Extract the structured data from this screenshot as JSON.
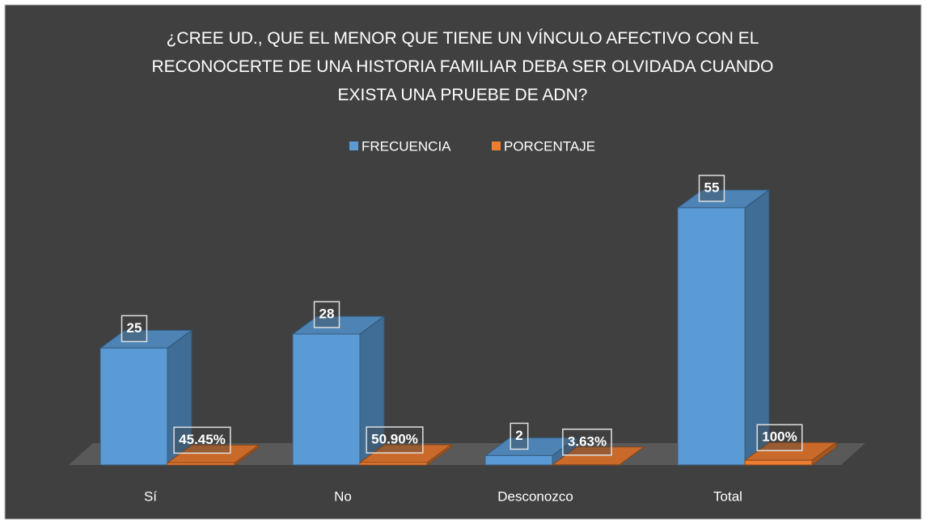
{
  "chart_data": {
    "type": "bar3d",
    "title": "¿CREE UD., QUE EL MENOR QUE TIENE UN VÍNCULO AFECTIVO CON EL RECONOCERTE DE UNA HISTORIA FAMILIAR DEBA SER OLVIDADA CUANDO EXISTA UNA PRUEBE DE ADN?",
    "categories": [
      "Sí",
      "No",
      "Desconozco",
      "Total"
    ],
    "series": [
      {
        "name": "FRECUENCIA",
        "color": "#5b9bd5",
        "values": [
          25,
          28,
          2,
          55
        ]
      },
      {
        "name": "PORCENTAJE",
        "color": "#ed7d31",
        "values": [
          0.4545,
          0.509,
          0.0363,
          1
        ],
        "value_labels": [
          "45.45%",
          "50.90%",
          "3.63%",
          "100%"
        ]
      }
    ],
    "ylim": [
      0,
      60
    ],
    "legend": "top"
  }
}
